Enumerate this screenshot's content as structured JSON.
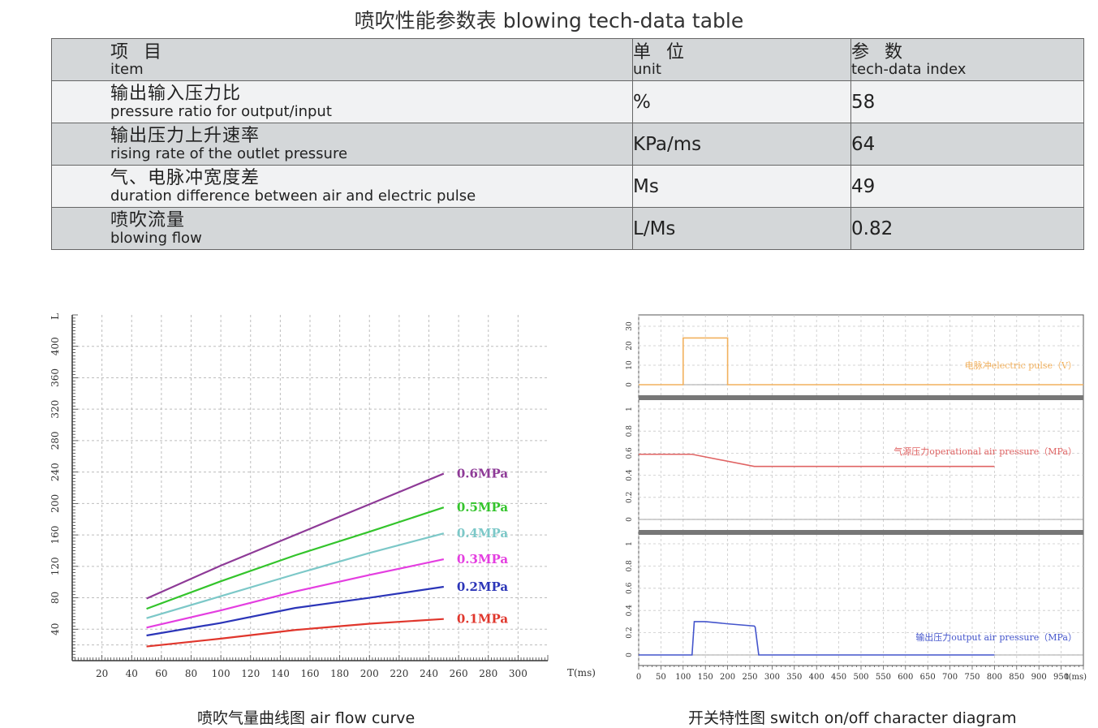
{
  "page_title": "喷吹性能参数表  blowing tech-data table",
  "table": {
    "header": {
      "item_zh": "项 目",
      "item_en": "item",
      "unit_zh": "单 位",
      "unit_en": "unit",
      "param_zh": "参 数",
      "param_en": "tech-data index"
    },
    "rows": [
      {
        "zh": "输出输入压力比",
        "en": "pressure ratio for output/input",
        "unit": "%",
        "value": "58"
      },
      {
        "zh": "输出压力上升速率",
        "en": "rising rate of the outlet pressure",
        "unit": "KPa/ms",
        "value": "64"
      },
      {
        "zh": "气、电脉冲宽度差",
        "en": "duration difference between air and electric pulse",
        "unit": "Ms",
        "value": "49"
      },
      {
        "zh": "喷吹流量",
        "en": "blowing flow",
        "unit": "L/Ms",
        "value": "0.82"
      }
    ]
  },
  "chart_data": [
    {
      "type": "line",
      "caption": "喷吹气量曲线图  air flow curve",
      "xlabel": "T(ms)",
      "ylabel": "L",
      "xlim": [
        0,
        320
      ],
      "ylim": [
        0,
        440
      ],
      "x_ticks": [
        20,
        40,
        60,
        80,
        100,
        120,
        140,
        160,
        180,
        200,
        220,
        240,
        260,
        280,
        300
      ],
      "y_ticks": [
        40,
        80,
        120,
        160,
        200,
        240,
        280,
        320,
        360,
        400
      ],
      "grid": true,
      "series": [
        {
          "name": "0.6MPa",
          "color": "#8e3a97",
          "x": [
            50,
            100,
            150,
            200,
            250
          ],
          "y": [
            79,
            121,
            160,
            199,
            238
          ]
        },
        {
          "name": "0.5MPa",
          "color": "#33c42b",
          "x": [
            50,
            100,
            150,
            200,
            250
          ],
          "y": [
            66,
            101,
            134,
            164,
            195
          ]
        },
        {
          "name": "0.4MPa",
          "color": "#7cc8c8",
          "x": [
            50,
            100,
            150,
            200,
            250
          ],
          "y": [
            54,
            82,
            110,
            137,
            162
          ]
        },
        {
          "name": "0.3MPa",
          "color": "#e43ee0",
          "x": [
            50,
            100,
            150,
            200,
            250
          ],
          "y": [
            42,
            64,
            88,
            109,
            129
          ]
        },
        {
          "name": "0.2MPa",
          "color": "#2b35b8",
          "x": [
            50,
            100,
            150,
            200,
            250
          ],
          "y": [
            32,
            48,
            67,
            80,
            94
          ]
        },
        {
          "name": "0.1MPa",
          "color": "#e0362c",
          "x": [
            50,
            100,
            150,
            200,
            250
          ],
          "y": [
            18,
            28,
            39,
            47,
            53
          ]
        }
      ]
    },
    {
      "type": "line",
      "caption": "开关特性图  switch on/off character diagram",
      "xlabel": "t(ms)",
      "xlim": [
        0,
        1000
      ],
      "x_ticks": [
        0,
        50,
        100,
        150,
        200,
        250,
        300,
        350,
        400,
        450,
        500,
        550,
        600,
        650,
        700,
        750,
        800,
        850,
        900,
        950
      ],
      "grid": true,
      "panels": [
        {
          "name": "电脉冲electric pulse（V）",
          "color": "#f2b15e",
          "ylim": [
            0,
            30
          ],
          "y_ticks": [
            0,
            10,
            20,
            30
          ],
          "x": [
            0,
            100,
            100,
            200,
            200,
            1000
          ],
          "y": [
            0,
            0,
            24,
            24,
            0,
            0
          ]
        },
        {
          "name": "气源压力operational air pressure（MPa）",
          "color": "#e06464",
          "ylim": [
            0,
            1
          ],
          "y_ticks": [
            0,
            0.2,
            0.4,
            0.6,
            0.8,
            1
          ],
          "x": [
            0,
            120,
            260,
            800
          ],
          "y": [
            0.59,
            0.59,
            0.48,
            0.48
          ]
        },
        {
          "name": "输出压力output air pressure（MPa）",
          "color": "#4455cc",
          "ylim": [
            0,
            1
          ],
          "y_ticks": [
            0,
            0.2,
            0.4,
            0.6,
            0.8,
            1
          ],
          "x": [
            0,
            120,
            125,
            150,
            200,
            260,
            262,
            270,
            800
          ],
          "y": [
            0,
            0,
            0.3,
            0.3,
            0.28,
            0.26,
            0.25,
            0,
            0
          ]
        }
      ]
    }
  ]
}
